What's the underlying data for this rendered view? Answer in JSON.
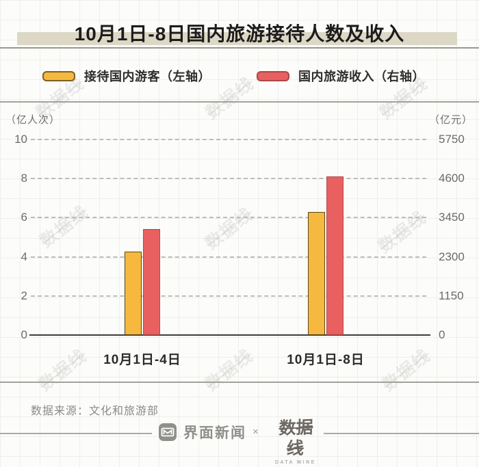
{
  "title": "10月1日-8日国内旅游接待人数及收入",
  "legend": [
    {
      "label": "接待国内游客（左轴）",
      "color": "#f6b83e",
      "border": "#7d6024"
    },
    {
      "label": "国内旅游收入（右轴）",
      "color": "#e86060",
      "border": "#a84848"
    }
  ],
  "chart_data": {
    "type": "bar",
    "categories": [
      "10月1日-4日",
      "10月1日-8日"
    ],
    "series": [
      {
        "name": "接待国内游客（左轴）",
        "axis": "left",
        "values": [
          4.25,
          6.3
        ],
        "color": "#f6b83e",
        "border": "#55481f"
      },
      {
        "name": "国内旅游收入（右轴）",
        "axis": "right",
        "values": [
          3120,
          4670
        ],
        "color": "#e86060",
        "border": "#b04c4c"
      }
    ],
    "left_axis": {
      "unit": "（亿人次）",
      "ticks": [
        0,
        2,
        4,
        6,
        8,
        10
      ],
      "max": 10
    },
    "right_axis": {
      "unit": "（亿元）",
      "ticks": [
        0,
        1150,
        2300,
        3450,
        4600,
        5750
      ],
      "max": 5750
    },
    "grid": "horizontal-dashed",
    "legend_position": "top"
  },
  "source": "数据来源：文化和旅游部",
  "footer": {
    "brand_left": "界面新闻",
    "separator": "×",
    "brand_right": "数据线",
    "brand_right_sub": "DATA WIRE"
  },
  "watermark": "数据线"
}
